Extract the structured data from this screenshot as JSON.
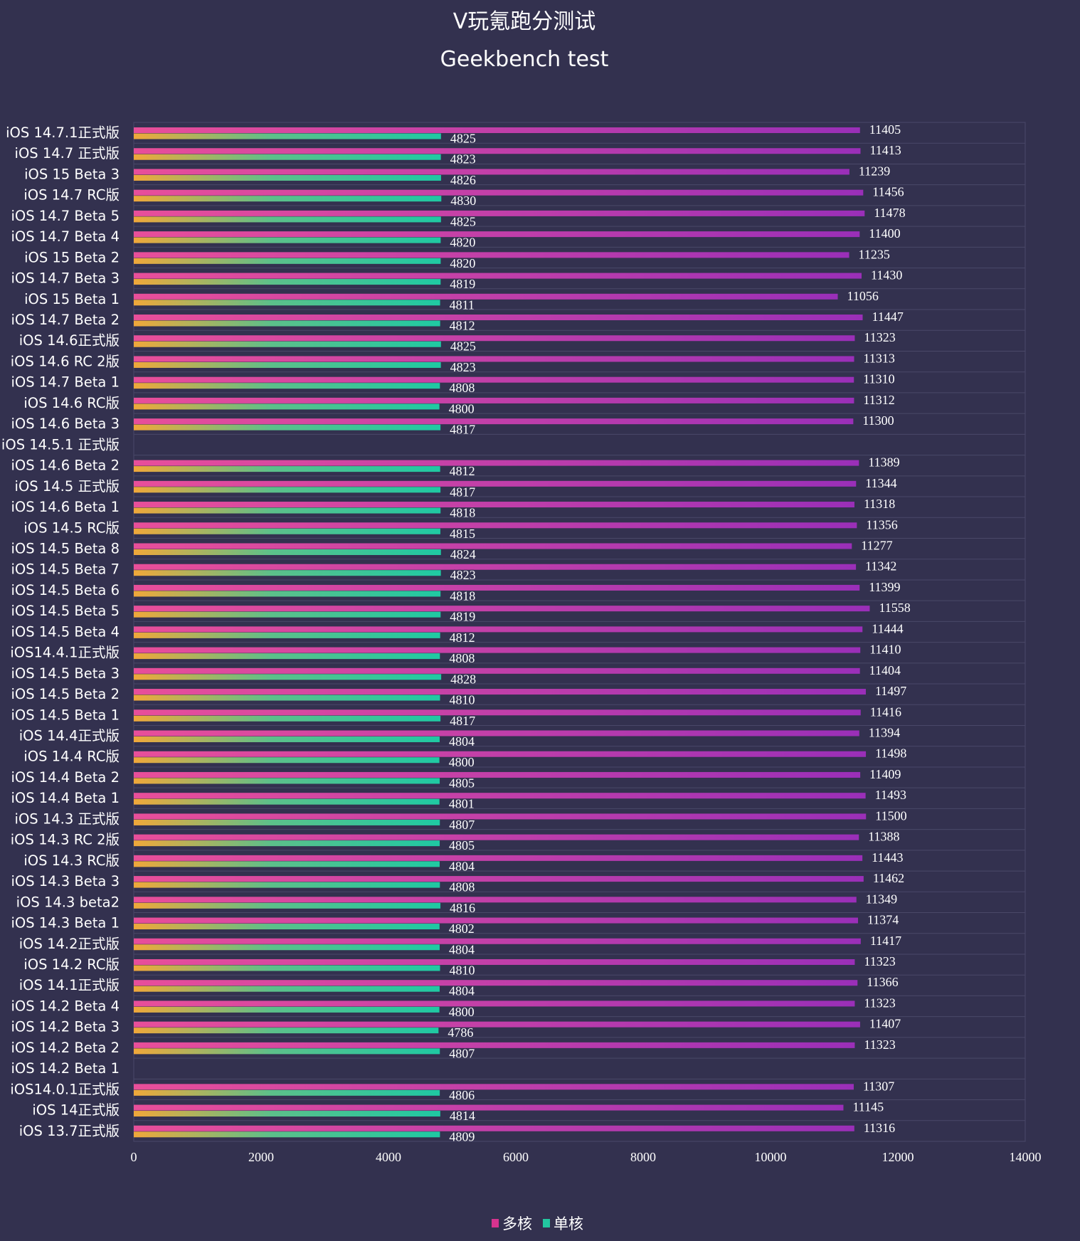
{
  "chart_data": {
    "type": "bar",
    "orientation": "horizontal",
    "title": "V玩氪跑分测试",
    "subtitle": "Geekbench test",
    "xlim": [
      0,
      14000
    ],
    "xticks": [
      0,
      2000,
      4000,
      6000,
      8000,
      10000,
      12000,
      14000
    ],
    "grid": true,
    "legend_position": "bottom",
    "categories": [
      "iOS 14.7.1正式版",
      "iOS 14.7 正式版",
      "iOS 15 Beta 3",
      "iOS 14.7 RC版",
      "iOS 14.7 Beta 5",
      "iOS 14.7 Beta 4",
      "iOS 15 Beta 2",
      "iOS 14.7 Beta 3",
      "iOS 15 Beta 1",
      "iOS 14.7 Beta 2",
      "iOS 14.6正式版",
      "iOS 14.6 RC 2版",
      "iOS 14.7 Beta 1",
      "iOS 14.6 RC版",
      "iOS 14.6 Beta 3",
      "iOS 14.5.1 正式版",
      "iOS 14.6 Beta 2",
      "iOS 14.5 正式版",
      "iOS 14.6 Beta 1",
      "iOS 14.5 RC版",
      "iOS 14.5 Beta 8",
      "iOS 14.5 Beta 7",
      "iOS 14.5 Beta 6",
      "iOS 14.5 Beta 5",
      "iOS 14.5 Beta 4",
      "iOS14.4.1正式版",
      "iOS 14.5 Beta 3",
      "iOS 14.5 Beta 2",
      "iOS 14.5 Beta 1",
      "iOS 14.4正式版",
      "iOS 14.4 RC版",
      "iOS 14.4 Beta 2",
      "iOS 14.4 Beta 1",
      "iOS 14.3 正式版",
      "iOS 14.3 RC 2版",
      "iOS 14.3 RC版",
      "iOS 14.3 Beta 3",
      "iOS 14.3 beta2",
      "iOS 14.3 Beta 1",
      "iOS 14.2正式版",
      "iOS 14.2 RC版",
      "iOS 14.1正式版",
      "iOS 14.2 Beta 4",
      "iOS 14.2 Beta 3",
      "iOS 14.2 Beta 2",
      "iOS 14.2 Beta 1",
      "iOS14.0.1正式版",
      "iOS 14正式版",
      "iOS 13.7正式版"
    ],
    "series": [
      {
        "name": "多核",
        "values": [
          11405,
          11413,
          11239,
          11456,
          11478,
          11400,
          11235,
          11430,
          11056,
          11447,
          11323,
          11313,
          11310,
          11312,
          11300,
          null,
          11389,
          11344,
          11318,
          11356,
          11277,
          11342,
          11399,
          11558,
          11444,
          11410,
          11404,
          11497,
          11416,
          11394,
          11498,
          11409,
          11493,
          11500,
          11388,
          11443,
          11462,
          11349,
          11374,
          11417,
          11323,
          11366,
          11323,
          11407,
          11323,
          null,
          11307,
          11145,
          11316
        ]
      },
      {
        "name": "单核",
        "values": [
          4825,
          4823,
          4826,
          4830,
          4825,
          4820,
          4820,
          4819,
          4811,
          4812,
          4825,
          4823,
          4808,
          4800,
          4817,
          null,
          4812,
          4817,
          4818,
          4815,
          4824,
          4823,
          4818,
          4819,
          4812,
          4808,
          4828,
          4810,
          4817,
          4804,
          4800,
          4805,
          4801,
          4807,
          4805,
          4804,
          4808,
          4816,
          4802,
          4804,
          4810,
          4804,
          4800,
          4786,
          4807,
          null,
          4806,
          4814,
          4809
        ]
      }
    ],
    "colors": {
      "background": "#33314f",
      "grid": "#4a4868",
      "multi_start": "#e84f9a",
      "multi_end": "#9a2fb8",
      "single_start": "#f0a83a",
      "single_end": "#1fc9a3",
      "legend_multi": "#d6338f",
      "legend_single": "#22c7a0"
    }
  }
}
